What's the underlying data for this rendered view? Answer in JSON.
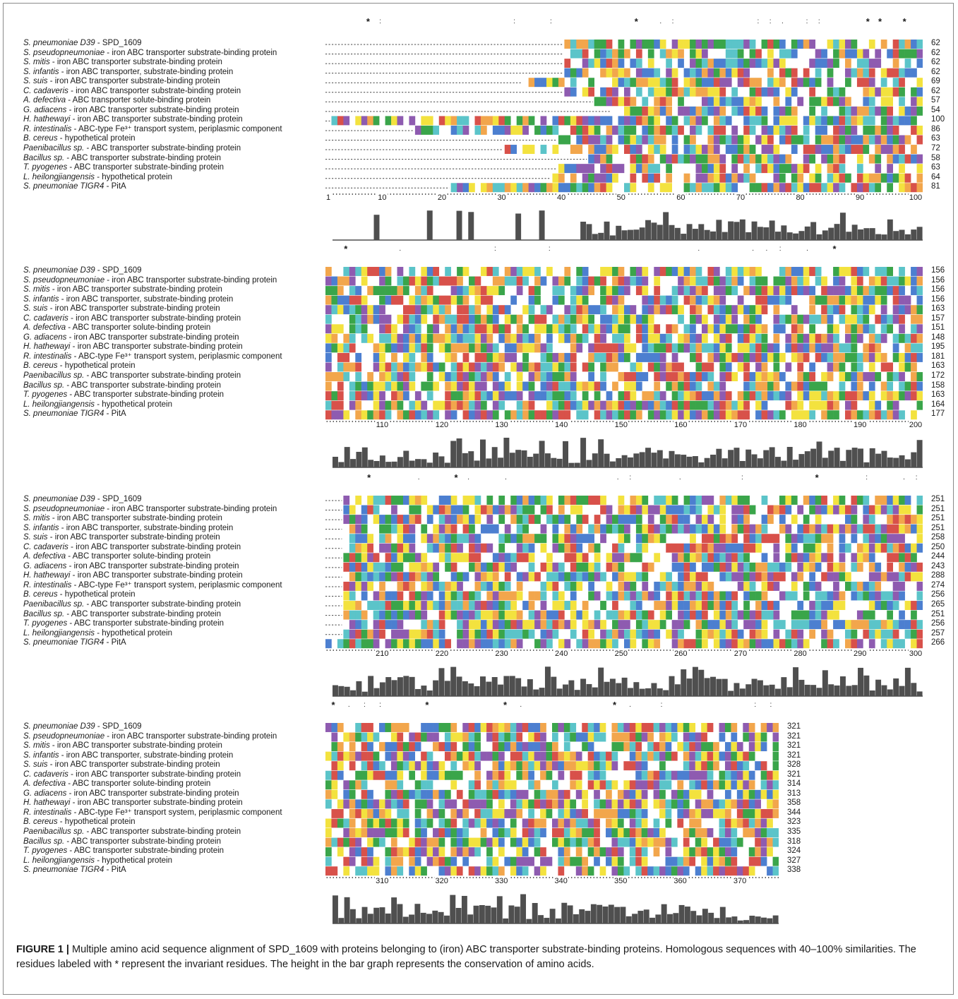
{
  "species": [
    "S. pneumoniae D39 - SPD_1609",
    "S. pseudopneumoniae - iron ABC transporter substrate-binding protein",
    "S. mitis - iron ABC transporter substrate-binding protein",
    "S. infantis - iron ABC transporter, substrate-binding protein",
    "S. suis - iron ABC transporter substrate-binding protein",
    "C. cadaveris - iron ABC transporter substrate-binding protein",
    "A. defectiva - ABC transporter solute-binding protein",
    "G. adiacens - iron ABC transporter substrate-binding protein",
    "H. hathewayi - iron ABC transporter substrate-binding protein",
    "R. intestinalis - ABC-type Fe³⁺ transport system, periplasmic component",
    "B. cereus - hypothetical protein",
    "Paenibacillus sp. - ABC transporter substrate-binding protein",
    "Bacillus sp. - ABC transporter substrate-binding protein",
    "T. pyogenes - ABC transporter substrate-binding protein",
    "L. heilongjiangensis - hypothetical protein",
    "S. pneumoniae TIGR4 - PitA"
  ],
  "blocks": [
    {
      "ends": [
        "62",
        "62",
        "62",
        "62",
        "69",
        "62",
        "57",
        "54",
        "100",
        "86",
        "63",
        "72",
        "58",
        "63",
        "64",
        "81"
      ],
      "ruler": [
        "1",
        "10",
        "20",
        "30",
        "40",
        "50",
        "60",
        "70",
        "80",
        "90",
        "100"
      ],
      "starts": [
        40,
        40,
        40,
        40,
        33,
        40,
        45,
        48,
        1,
        15,
        39,
        30,
        44,
        39,
        38,
        21
      ],
      "conservation": "   *:          :  :      * .:      ::. ::   ** * "
    },
    {
      "ends": [
        "156",
        "156",
        "156",
        "156",
        "163",
        "157",
        "151",
        "148",
        "195",
        "181",
        "163",
        "172",
        "158",
        "163",
        "164",
        "177"
      ],
      "ruler": [
        "110",
        "120",
        "130",
        "140",
        "150",
        "160",
        "170",
        "180",
        "190",
        "200"
      ],
      "starts": [
        0,
        0,
        0,
        0,
        0,
        0,
        0,
        0,
        0,
        0,
        0,
        0,
        0,
        0,
        0,
        0
      ],
      "conservation": " *   .      :   :          .   ..: . *      "
    },
    {
      "ends": [
        "251",
        "251",
        "251",
        "251",
        "258",
        "250",
        "244",
        "243",
        "288",
        "274",
        "256",
        "265",
        "251",
        "256",
        "257",
        "266"
      ],
      "ruler": [
        "210",
        "220",
        "230",
        "240",
        "250",
        "260",
        "270",
        "280",
        "290",
        "300"
      ],
      "starts": [
        3,
        3,
        3,
        3,
        3,
        3,
        3,
        3,
        3,
        3,
        3,
        3,
        3,
        3,
        3,
        0
      ],
      "conservation": "   *   .  *.  .        .:   .    :     *   :  .:"
    },
    {
      "ends": [
        "321",
        "321",
        "321",
        "321",
        "328",
        "321",
        "314",
        "313",
        "358",
        "344",
        "323",
        "335",
        "318",
        "324",
        "327",
        "338"
      ],
      "ruler": [
        "310",
        "320",
        "330",
        "340",
        "350",
        "360",
        "370"
      ],
      "starts": [
        0,
        0,
        0,
        0,
        0,
        0,
        0,
        0,
        0,
        0,
        0,
        0,
        0,
        0,
        0,
        0
      ],
      "conservation": "*.::  *    *.     *. :     ::"
    }
  ],
  "caption": {
    "label": "FIGURE 1 |",
    "text": "Multiple amino acid sequence alignment of SPD_1609 with proteins belonging to (iron) ABC transporter substrate-binding proteins. Homologous sequences with 40–100% similarities. The residues labeled with * represent the invariant residues. The height in the bar graph represents the conservation of amino acids."
  },
  "colors": {
    "teal": "#5bc4c9",
    "green": "#3aa54a",
    "orange": "#f2a64c",
    "purple": "#8e5bb0",
    "red": "#d8514a",
    "yellow": "#f3e23e",
    "blue": "#4c7fd0",
    "histogram": "#4f4f4f"
  }
}
